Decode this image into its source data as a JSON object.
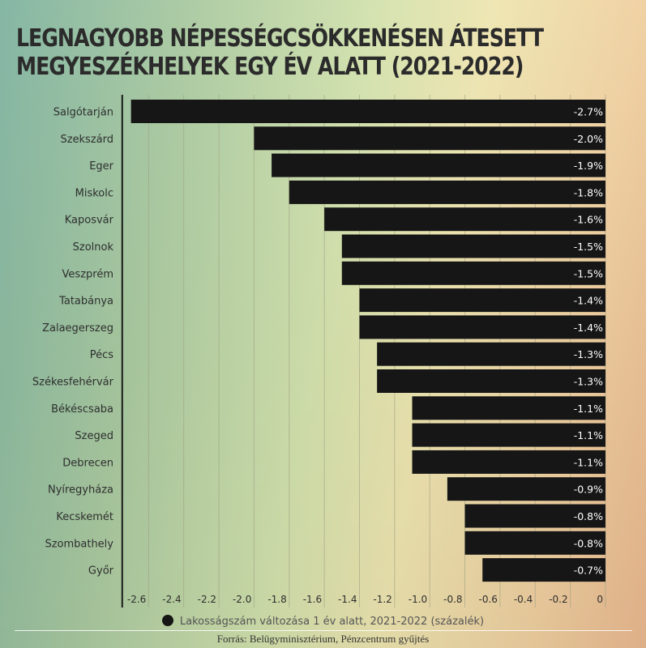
{
  "chart_data": {
    "type": "bar",
    "orientation": "horizontal",
    "title": "LEGNAGYOBB NÉPESSÉGCSÖKKENÉSEN ÁTESETT MEGYESZÉKHELYEK EGY ÉV ALATT (2021-2022)",
    "title_lines": [
      "LEGNAGYOBB NÉPESSÉGCSÖKKENÉSEN ÁTESETT",
      "MEGYESZÉKHELYEK EGY ÉV ALATT (2021-2022)"
    ],
    "categories": [
      "Salgótarján",
      "Szekszárd",
      "Eger",
      "Miskolc",
      "Kaposvár",
      "Szolnok",
      "Veszprém",
      "Tatabánya",
      "Zalaegerszeg",
      "Pécs",
      "Székesfehérvár",
      "Békéscsaba",
      "Szeged",
      "Debrecen",
      "Nyíregyháza",
      "Kecskemét",
      "Szombathely",
      "Győr"
    ],
    "values": [
      -2.7,
      -2.0,
      -1.9,
      -1.8,
      -1.6,
      -1.5,
      -1.5,
      -1.4,
      -1.4,
      -1.3,
      -1.3,
      -1.1,
      -1.1,
      -1.1,
      -0.9,
      -0.8,
      -0.8,
      -0.7
    ],
    "value_labels": [
      "-2.7%",
      "-2.0%",
      "-1.9%",
      "-1.8%",
      "-1.6%",
      "-1.5%",
      "-1.5%",
      "-1.4%",
      "-1.4%",
      "-1.3%",
      "-1.3%",
      "-1.1%",
      "-1.1%",
      "-1.1%",
      "-0.9%",
      "-0.8%",
      "-0.8%",
      "-0.7%"
    ],
    "xticks": [
      -2.6,
      -2.4,
      -2.2,
      -2.0,
      -1.8,
      -1.6,
      -1.4,
      -1.2,
      -1.0,
      -0.8,
      -0.6,
      -0.4,
      -0.2,
      0
    ],
    "xtick_labels": [
      "-2.6",
      "-2.4",
      "-2.2",
      "-2.0",
      "-1.8",
      "-1.6",
      "-1.4",
      "-1.2",
      "-1.0",
      "-0.8",
      "-0.6",
      "-0.4",
      "-0.2",
      "0"
    ],
    "xlim": [
      -2.75,
      0
    ],
    "xlabel": "",
    "ylabel": "",
    "grid": true,
    "legend": {
      "entries": [
        "Lakosságszám változása 1 év alatt, 2021-2022 (százalék)"
      ],
      "position": "bottom"
    },
    "source": "Forrás: Belügyminisztérium, Pénzcentrum gyűjtés",
    "colors": {
      "bar": "#161616",
      "bar_label": "#ffffff",
      "grid": "#9a9a80",
      "axis": "#1a1a1a"
    }
  }
}
